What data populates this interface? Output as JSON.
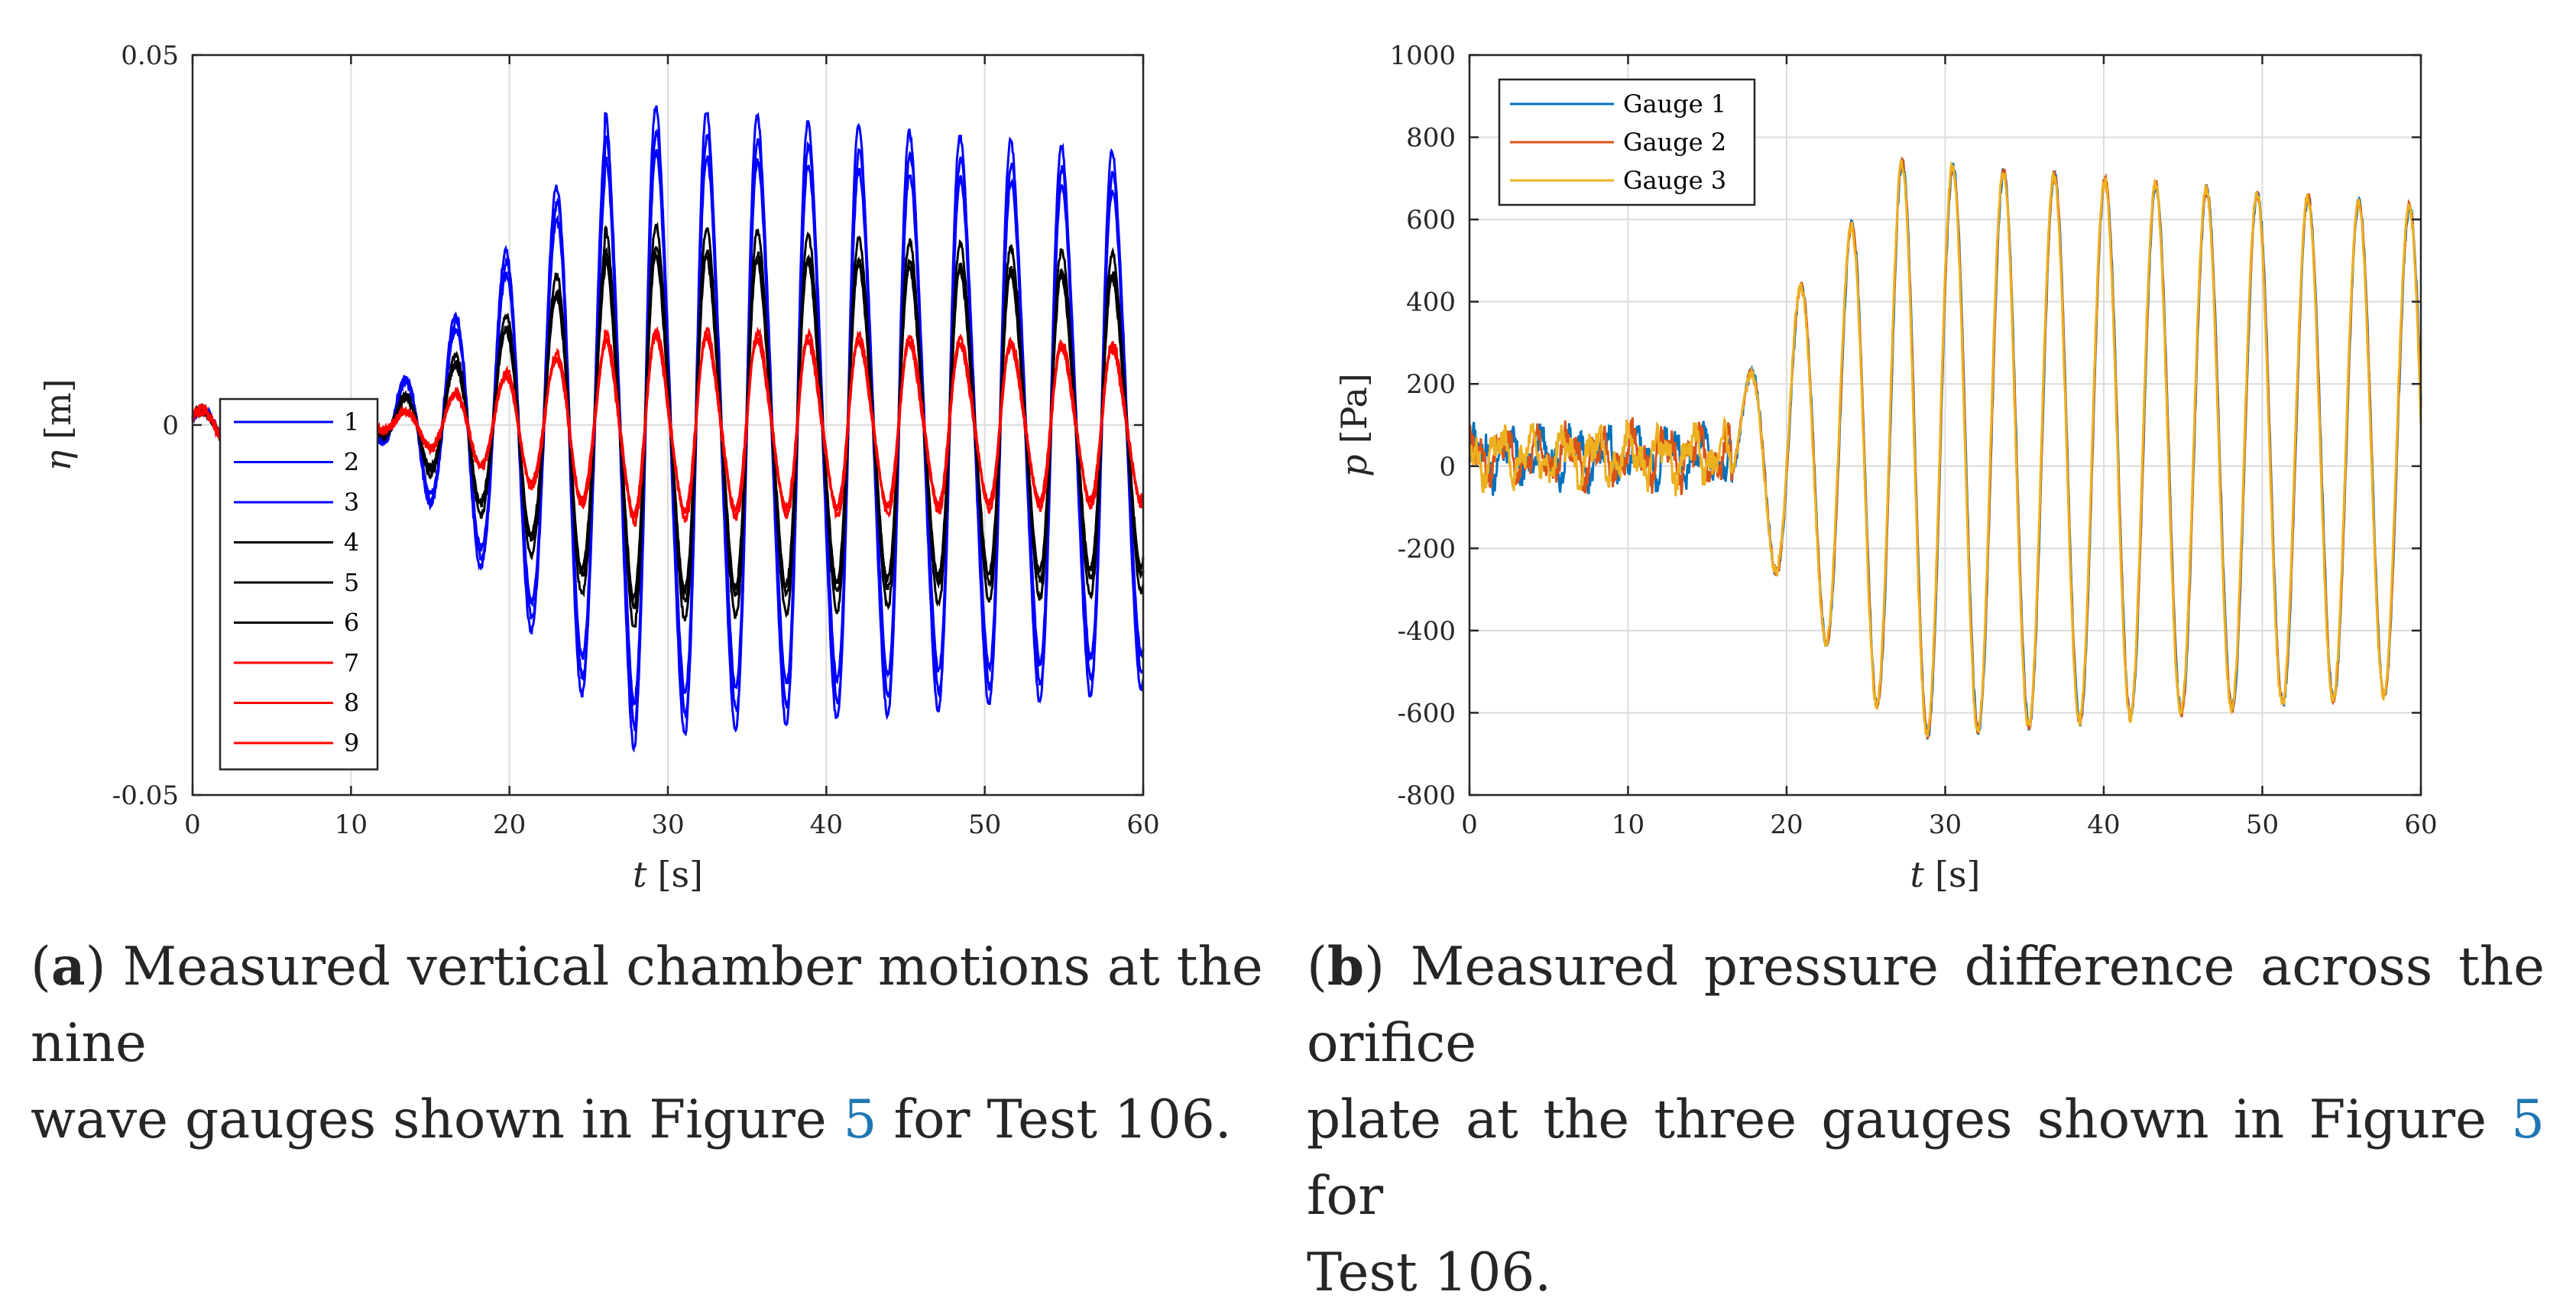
{
  "charts": [
    {
      "type": "line",
      "x_label_var": "t",
      "x_label_unit": "[s]",
      "y_label_var": "η",
      "y_label_unit": "[m]",
      "xlim": [
        0,
        60
      ],
      "ylim": [
        -0.05,
        0.05
      ],
      "x_ticks": [
        0,
        10,
        20,
        30,
        40,
        50,
        60
      ],
      "y_ticks": [
        -0.05,
        0,
        0.05
      ],
      "y_tick_labels": [
        "-0.05",
        "0",
        "0.05"
      ],
      "grid": true,
      "legend_position": "center-left",
      "series": [
        {
          "name": "1",
          "color": "#0000ff",
          "amp": 0.04,
          "phase": 0.0
        },
        {
          "name": "2",
          "color": "#0000ff",
          "amp": 0.037,
          "phase": 0.05
        },
        {
          "name": "3",
          "color": "#0000ff",
          "amp": 0.043,
          "phase": 0.1
        },
        {
          "name": "4",
          "color": "#000000",
          "amp": 0.024,
          "phase": 0.02
        },
        {
          "name": "5",
          "color": "#000000",
          "amp": 0.027,
          "phase": 0.07
        },
        {
          "name": "6",
          "color": "#000000",
          "amp": 0.023,
          "phase": 0.12
        },
        {
          "name": "7",
          "color": "#ff0000",
          "amp": 0.013,
          "phase": 0.03
        },
        {
          "name": "8",
          "color": "#ff0000",
          "amp": 0.012,
          "phase": 0.08
        },
        {
          "name": "9",
          "color": "#ff0000",
          "amp": 0.012,
          "phase": 0.13
        }
      ]
    },
    {
      "type": "line",
      "x_label_var": "t",
      "x_label_unit": "[s]",
      "y_label_var": "p",
      "y_label_unit": "[Pa]",
      "xlim": [
        0,
        60
      ],
      "ylim": [
        -800,
        1000
      ],
      "x_ticks": [
        0,
        10,
        20,
        30,
        40,
        50,
        60
      ],
      "y_ticks": [
        -800,
        -600,
        -400,
        -200,
        0,
        200,
        400,
        600,
        800,
        1000
      ],
      "y_tick_labels": [
        "-800",
        "-600",
        "-400",
        "-200",
        "0",
        "200",
        "400",
        "600",
        "800",
        "1000"
      ],
      "grid": true,
      "legend_position": "top-left",
      "series": [
        {
          "name": "Gauge 1",
          "color": "#0072bd",
          "phase": 0.0
        },
        {
          "name": "Gauge 2",
          "color": "#d95319",
          "phase": 0.04
        },
        {
          "name": "Gauge 3",
          "color": "#edb120",
          "phase": 0.08
        }
      ]
    }
  ],
  "captions": {
    "a": {
      "label": "a",
      "line1_pre": "Measured vertical chamber motions at the nine",
      "line2_pre": "wave gauges shown in Figure ",
      "ref": "5",
      "line2_post": " for Test 106."
    },
    "b": {
      "label": "b",
      "line1_pre": "Measured pressure difference across the orifice",
      "line2_pre": "plate at the three gauges shown in Figure ",
      "ref": "5",
      "line2_post": " for",
      "line3": "Test 106."
    }
  }
}
